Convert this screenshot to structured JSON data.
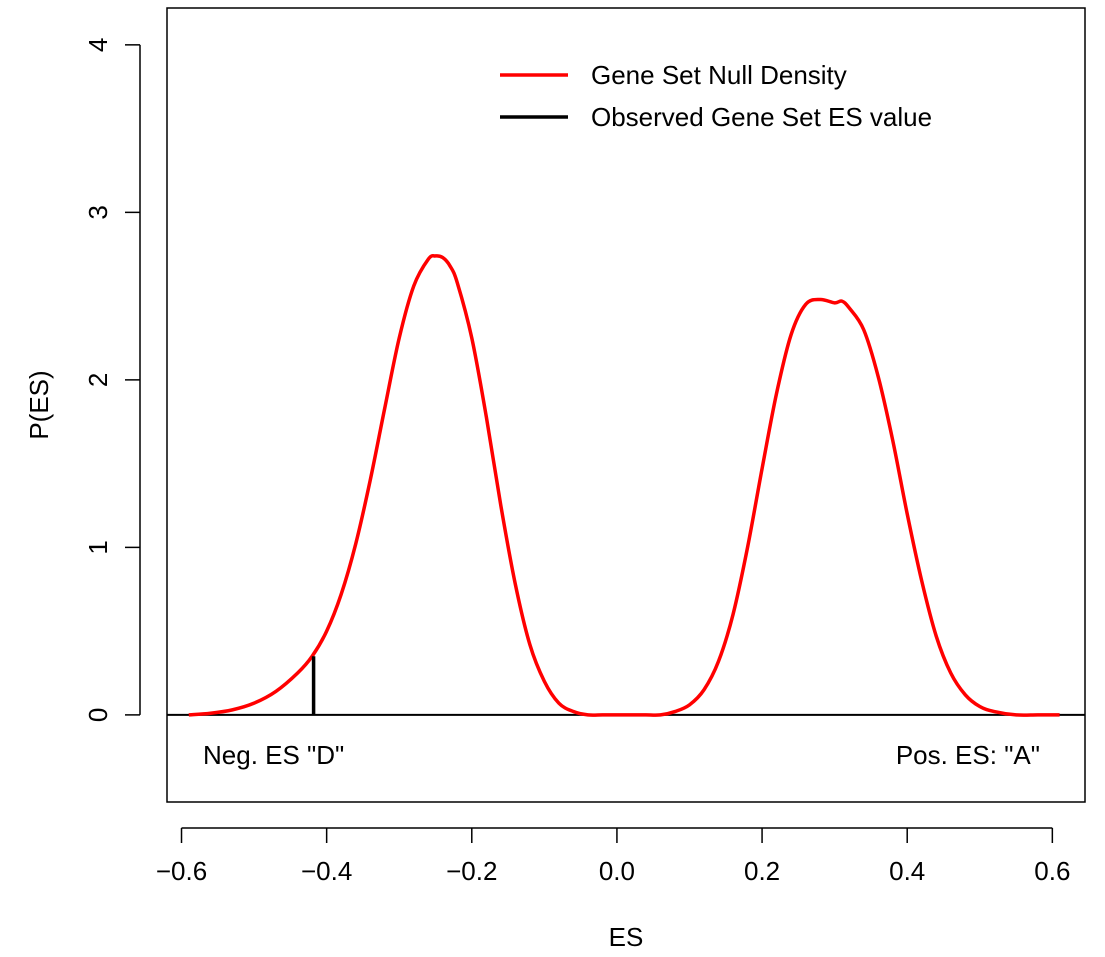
{
  "chart_data": {
    "type": "line",
    "title": "",
    "xlabel": "ES",
    "ylabel": "P(ES)",
    "xlim": [
      -0.62,
      0.645
    ],
    "ylim": [
      -0.52,
      4.22
    ],
    "x_ticks": [
      -0.6,
      -0.4,
      -0.2,
      0.0,
      0.2,
      0.4,
      0.6
    ],
    "x_tick_labels": [
      "−0.6",
      "−0.4",
      "−0.2",
      "0.0",
      "0.2",
      "0.4",
      "0.6"
    ],
    "y_ticks": [
      0,
      1,
      2,
      3,
      4
    ],
    "y_tick_labels": [
      "0",
      "1",
      "2",
      "3",
      "4"
    ],
    "grid": false,
    "legend_position": "top-right",
    "series": [
      {
        "name": "Gene Set Null Density",
        "color": "#ff0000",
        "x": [
          -0.59,
          -0.56,
          -0.53,
          -0.5,
          -0.47,
          -0.44,
          -0.42,
          -0.4,
          -0.38,
          -0.36,
          -0.34,
          -0.32,
          -0.3,
          -0.28,
          -0.26,
          -0.25,
          -0.24,
          -0.23,
          -0.22,
          -0.2,
          -0.18,
          -0.16,
          -0.14,
          -0.12,
          -0.1,
          -0.08,
          -0.06,
          -0.04,
          -0.02,
          0.0,
          0.02,
          0.04,
          0.06,
          0.08,
          0.1,
          0.12,
          0.14,
          0.16,
          0.18,
          0.2,
          0.22,
          0.24,
          0.26,
          0.28,
          0.3,
          0.31,
          0.32,
          0.34,
          0.36,
          0.38,
          0.4,
          0.42,
          0.44,
          0.46,
          0.48,
          0.5,
          0.52,
          0.55,
          0.58,
          0.61
        ],
        "y": [
          0.0,
          0.01,
          0.03,
          0.07,
          0.14,
          0.25,
          0.35,
          0.5,
          0.72,
          1.02,
          1.4,
          1.83,
          2.25,
          2.56,
          2.72,
          2.74,
          2.73,
          2.68,
          2.58,
          2.25,
          1.78,
          1.25,
          0.78,
          0.42,
          0.2,
          0.07,
          0.02,
          0.0,
          0.0,
          0.0,
          0.0,
          0.0,
          0.0,
          0.02,
          0.06,
          0.15,
          0.32,
          0.6,
          1.0,
          1.47,
          1.92,
          2.27,
          2.45,
          2.48,
          2.46,
          2.47,
          2.43,
          2.3,
          2.02,
          1.64,
          1.2,
          0.8,
          0.47,
          0.25,
          0.12,
          0.05,
          0.02,
          0.0,
          0.0,
          0.0
        ]
      },
      {
        "name": "Observed Gene Set ES value",
        "color": "#000000",
        "x": [
          -0.418,
          -0.418
        ],
        "y": [
          0.0,
          0.35
        ]
      }
    ],
    "reference_lines": [
      {
        "axis": "y",
        "value": 0,
        "color": "#000000"
      }
    ],
    "annotations": {
      "left": "Neg. ES \"D\"",
      "right": "Pos. ES: \"A\""
    }
  }
}
